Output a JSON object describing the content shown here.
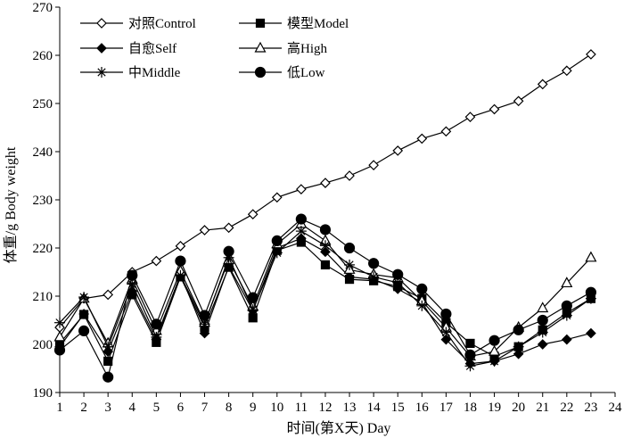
{
  "chart_data": {
    "type": "line",
    "title": "",
    "xlabel": "时间(第X天) Day",
    "ylabel": "体重/g Body weight",
    "xlim": [
      1,
      24
    ],
    "ylim": [
      190,
      270
    ],
    "xticks": [
      1,
      2,
      3,
      4,
      5,
      6,
      7,
      8,
      9,
      10,
      11,
      12,
      13,
      14,
      15,
      16,
      17,
      18,
      19,
      20,
      21,
      22,
      23,
      24
    ],
    "yticks": [
      190,
      200,
      210,
      220,
      230,
      240,
      250,
      260,
      270
    ],
    "grid": false,
    "legend_position": "top-left",
    "x": [
      1,
      2,
      3,
      4,
      5,
      6,
      7,
      8,
      9,
      10,
      11,
      12,
      13,
      14,
      15,
      16,
      17,
      18,
      19,
      20,
      21,
      22,
      23
    ],
    "series": [
      {
        "name": "对照Control",
        "marker": "diamond-open",
        "values": [
          203.5,
          209.5,
          210.3,
          215.0,
          217.3,
          220.4,
          223.7,
          224.2,
          227.0,
          230.5,
          232.2,
          233.5,
          235.0,
          237.2,
          240.2,
          242.7,
          244.2,
          247.2,
          248.8,
          250.5,
          254.0,
          256.8,
          260.2
        ]
      },
      {
        "name": "模型Model",
        "marker": "square-filled",
        "values": [
          200.2,
          206.2,
          196.5,
          210.3,
          200.4,
          214.0,
          203.5,
          216.0,
          205.5,
          219.5,
          221.2,
          216.5,
          213.5,
          213.2,
          212.0,
          209.5,
          204.5,
          200.2,
          197.5,
          199.5,
          203.0,
          206.5,
          209.5
        ]
      },
      {
        "name": "自愈Self",
        "marker": "diamond-filled",
        "values": [
          199.5,
          206.3,
          198.5,
          211.0,
          201.0,
          214.5,
          202.3,
          216.2,
          207.0,
          220.0,
          222.0,
          219.2,
          214.0,
          213.5,
          211.5,
          208.7,
          201.0,
          196.0,
          196.5,
          198.0,
          200.0,
          201.0,
          202.3
        ]
      },
      {
        "name": "高High",
        "marker": "triangle-open",
        "values": [
          201.5,
          209.5,
          200.2,
          213.5,
          202.8,
          215.2,
          204.5,
          217.5,
          207.8,
          220.8,
          225.0,
          221.5,
          215.5,
          214.5,
          213.8,
          209.0,
          203.5,
          197.5,
          198.5,
          203.5,
          207.5,
          212.7,
          218.0
        ]
      },
      {
        "name": "中Middle",
        "marker": "star",
        "values": [
          204.5,
          209.8,
          199.5,
          212.5,
          201.5,
          214.3,
          204.2,
          218.0,
          207.2,
          219.0,
          223.5,
          220.5,
          216.5,
          214.0,
          212.8,
          208.0,
          202.5,
          195.5,
          196.5,
          199.5,
          202.5,
          206.0,
          209.5
        ]
      },
      {
        "name": "低Low",
        "marker": "circle-filled",
        "values": [
          198.8,
          202.8,
          193.2,
          214.3,
          204.2,
          217.3,
          206.0,
          219.3,
          209.7,
          221.5,
          226.0,
          223.8,
          220.0,
          216.8,
          214.5,
          211.5,
          206.3,
          197.8,
          200.8,
          203.0,
          205.0,
          208.0,
          210.8
        ]
      }
    ]
  }
}
